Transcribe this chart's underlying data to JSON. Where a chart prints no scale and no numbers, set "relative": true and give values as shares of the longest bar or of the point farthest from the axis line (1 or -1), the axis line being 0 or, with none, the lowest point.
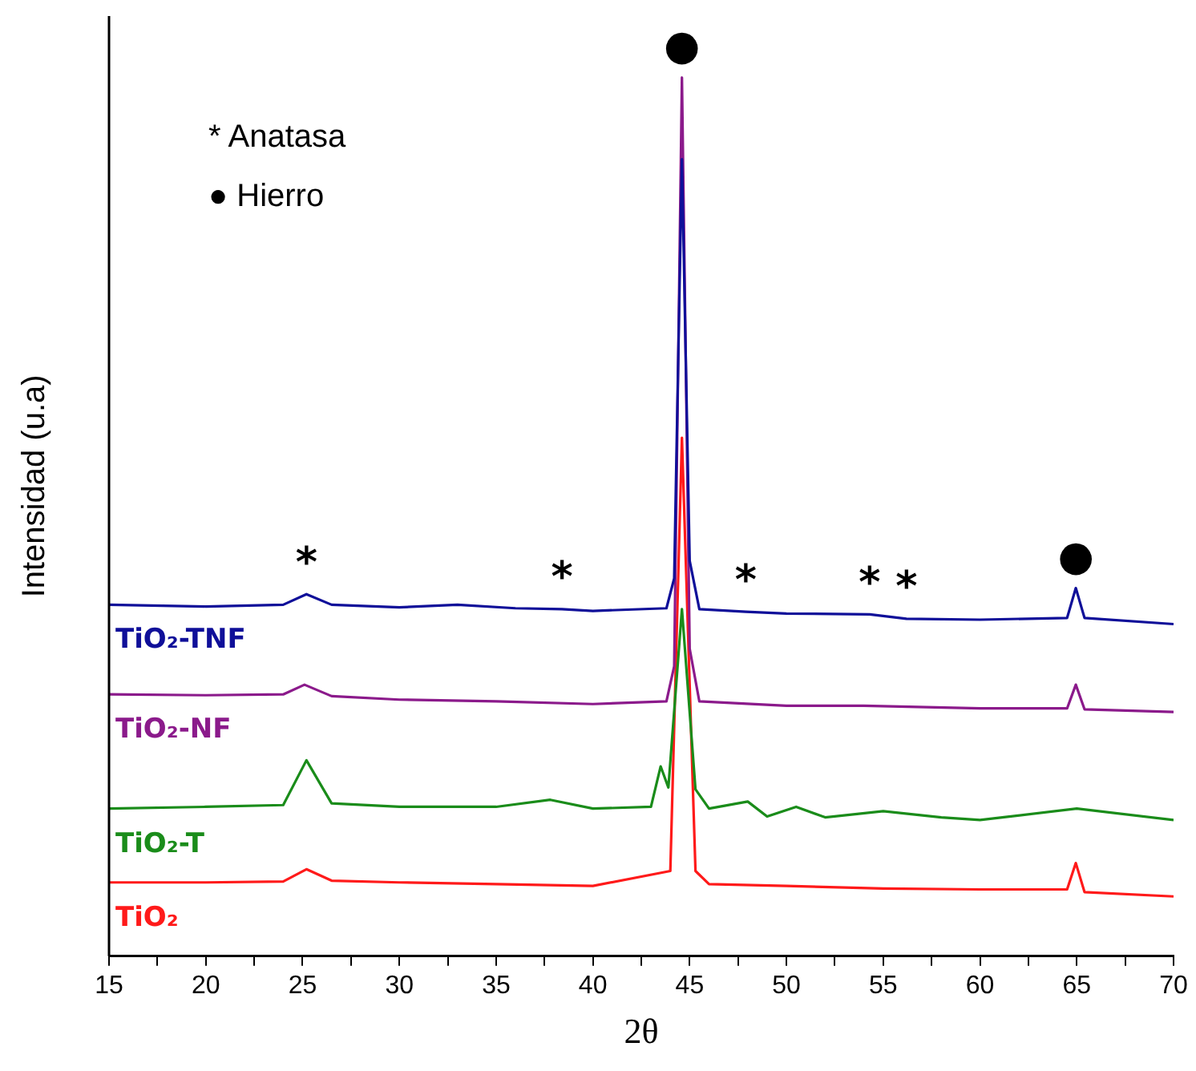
{
  "chart_data": {
    "type": "line",
    "relative": true,
    "xlabel": "2θ",
    "ylabel": "Intensidad (u.a)",
    "xlim": [
      15,
      70
    ],
    "xticks": [
      15,
      {
        "value": 17.5,
        "label": null
      },
      20,
      {
        "value": 22.5,
        "label": null
      },
      25,
      {
        "value": 27.5,
        "label": null
      },
      30,
      {
        "value": 32.5,
        "label": null
      },
      35,
      {
        "value": 37.5,
        "label": null
      },
      40,
      {
        "value": 42.5,
        "label": null
      },
      45,
      {
        "value": 47.5,
        "label": null
      },
      50,
      {
        "value": 52.5,
        "label": null
      },
      55,
      {
        "value": 57.5,
        "label": null
      },
      60,
      {
        "value": 62.5,
        "label": null
      },
      65,
      {
        "value": 67.5,
        "label": null
      },
      70
    ],
    "tick_labels": "x",
    "grid": false,
    "legend": false,
    "marker": "none",
    "line_style": "solid",
    "series": [
      {
        "name": "TiO₂-TNF",
        "color": "#0f0f99",
        "x": [
          15,
          20,
          24,
          25.2,
          26.5,
          30,
          33,
          36,
          38.4,
          40,
          43.8,
          44.2,
          44.6,
          45.0,
          45.5,
          47.9,
          50,
          54.3,
          56.2,
          60,
          64.5,
          64.95,
          65.4,
          70
        ],
        "values": [
          0.4,
          0.398,
          0.4,
          0.412,
          0.4,
          0.397,
          0.4,
          0.396,
          0.395,
          0.393,
          0.396,
          0.43,
          0.907,
          0.45,
          0.395,
          0.392,
          0.39,
          0.389,
          0.384,
          0.383,
          0.385,
          0.419,
          0.385,
          0.378
        ]
      },
      {
        "name": "TiO₂-NF",
        "color": "#8b1a8b",
        "x": [
          15,
          20,
          24,
          25.1,
          26.5,
          30,
          35,
          40,
          43.8,
          44.2,
          44.6,
          45.0,
          45.5,
          50,
          54,
          60,
          64.5,
          64.95,
          65.4,
          70
        ],
        "values": [
          0.298,
          0.297,
          0.298,
          0.309,
          0.296,
          0.292,
          0.29,
          0.287,
          0.29,
          0.33,
          1,
          0.35,
          0.29,
          0.285,
          0.285,
          0.282,
          0.282,
          0.309,
          0.281,
          0.278
        ]
      },
      {
        "name": "TiO₂-T",
        "color": "#1a8c1a",
        "x": [
          15,
          20,
          24,
          25.2,
          26.5,
          30,
          35,
          37.8,
          40,
          43,
          43.5,
          43.9,
          44.6,
          45.3,
          46,
          48,
          49,
          50.5,
          52,
          55,
          58,
          60,
          65,
          70
        ],
        "values": [
          0.168,
          0.17,
          0.172,
          0.223,
          0.174,
          0.17,
          0.17,
          0.178,
          0.168,
          0.17,
          0.216,
          0.192,
          0.395,
          0.19,
          0.168,
          0.176,
          0.159,
          0.17,
          0.158,
          0.165,
          0.158,
          0.155,
          0.168,
          0.155
        ]
      },
      {
        "name": "TiO₂",
        "color": "#ff1a1a",
        "x": [
          15,
          20,
          24,
          25.2,
          26.5,
          30,
          35,
          40,
          44,
          44.6,
          45.3,
          46,
          50,
          55,
          60,
          64.5,
          64.95,
          65.4,
          70
        ],
        "values": [
          0.084,
          0.084,
          0.085,
          0.099,
          0.086,
          0.084,
          0.082,
          0.08,
          0.097,
          0.59,
          0.097,
          0.082,
          0.08,
          0.077,
          0.076,
          0.076,
          0.106,
          0.073,
          0.068
        ]
      }
    ],
    "annotations": [
      "* Anatasa",
      "● Hierro",
      {
        "text": "*",
        "x": 25.2,
        "y": 0.412
      },
      {
        "text": "*",
        "x": 38.4,
        "y": 0.395
      },
      {
        "text": "*",
        "x": 47.9,
        "y": 0.392
      },
      {
        "text": "*",
        "x": 54.3,
        "y": 0.389
      },
      {
        "text": "*",
        "x": 56.2,
        "y": 0.384
      },
      {
        "text": "●",
        "x": 44.6,
        "y": 1
      },
      {
        "text": "●",
        "x": 64.95,
        "y": 0.419
      }
    ]
  }
}
